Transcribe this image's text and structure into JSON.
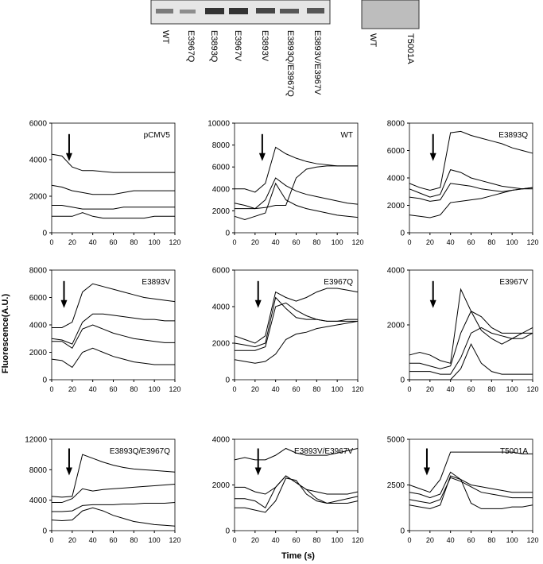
{
  "blot": {
    "lanes_left": [
      "WT",
      "E3967Q",
      "E3893Q",
      "E3967V",
      "E3893V",
      "E3893Q/E3967Q",
      "E3893V/E3967V"
    ],
    "lanes_right": [
      "WT",
      "T5001A"
    ]
  },
  "figure": {
    "ylabel": "Fluorescence(A.U.)",
    "xlabel": "Time (s)"
  },
  "chart_data": [
    {
      "type": "line",
      "title": "pCMV5",
      "arrow_x": 17,
      "x": [
        0,
        10,
        20,
        30,
        40,
        50,
        60,
        70,
        80,
        90,
        100,
        110,
        120
      ],
      "xlim": [
        0,
        120
      ],
      "xticks": [
        0,
        20,
        40,
        60,
        80,
        100,
        120
      ],
      "ylim": [
        0,
        6000
      ],
      "yticks": [
        0,
        2000,
        4000,
        6000
      ],
      "series": [
        {
          "color": "#000000",
          "values": [
            4300,
            4200,
            3600,
            3400,
            3400,
            3350,
            3300,
            3300,
            3300,
            3300,
            3300,
            3300,
            3300
          ]
        },
        {
          "color": "#000000",
          "values": [
            2600,
            2500,
            2300,
            2200,
            2100,
            2100,
            2100,
            2200,
            2300,
            2300,
            2300,
            2300,
            2300
          ]
        },
        {
          "color": "#000000",
          "values": [
            1500,
            1500,
            1400,
            1300,
            1300,
            1300,
            1300,
            1400,
            1400,
            1400,
            1400,
            1400,
            1400
          ]
        },
        {
          "color": "#000000",
          "values": [
            900,
            900,
            900,
            1100,
            900,
            800,
            800,
            800,
            800,
            800,
            900,
            900,
            900
          ]
        }
      ]
    },
    {
      "type": "line",
      "title": "WT",
      "arrow_x": 27,
      "x": [
        0,
        10,
        20,
        30,
        40,
        50,
        60,
        70,
        80,
        90,
        100,
        110,
        120
      ],
      "xlim": [
        0,
        120
      ],
      "xticks": [
        0,
        20,
        40,
        60,
        80,
        100,
        120
      ],
      "ylim": [
        0,
        10000
      ],
      "yticks": [
        0,
        2000,
        4000,
        6000,
        8000,
        10000
      ],
      "series": [
        {
          "color": "#000000",
          "values": [
            4000,
            4000,
            3700,
            4500,
            7800,
            7200,
            6800,
            6500,
            6300,
            6200,
            6100,
            6100,
            6100
          ]
        },
        {
          "color": "#000000",
          "values": [
            2700,
            2500,
            2200,
            3000,
            5000,
            4300,
            3800,
            3500,
            3300,
            3100,
            2900,
            2700,
            2600
          ]
        },
        {
          "color": "#000000",
          "values": [
            2200,
            2200,
            2200,
            2300,
            2500,
            2500,
            5000,
            5800,
            6000,
            6100,
            6100,
            6100,
            6100
          ]
        },
        {
          "color": "#000000",
          "values": [
            1500,
            1200,
            1500,
            1800,
            4500,
            3000,
            2500,
            2200,
            2000,
            1800,
            1600,
            1500,
            1400
          ]
        }
      ]
    },
    {
      "type": "line",
      "title": "E3893Q",
      "arrow_x": 23,
      "x": [
        0,
        10,
        20,
        30,
        40,
        50,
        60,
        70,
        80,
        90,
        100,
        110,
        120
      ],
      "xlim": [
        0,
        120
      ],
      "xticks": [
        0,
        20,
        40,
        60,
        80,
        100,
        120
      ],
      "ylim": [
        0,
        8000
      ],
      "yticks": [
        0,
        2000,
        4000,
        6000,
        8000
      ],
      "series": [
        {
          "color": "#000000",
          "values": [
            3600,
            3300,
            3100,
            3300,
            7300,
            7400,
            7100,
            6900,
            6700,
            6500,
            6200,
            6000,
            5800
          ]
        },
        {
          "color": "#000000",
          "values": [
            3200,
            2900,
            2600,
            2800,
            4600,
            4400,
            4000,
            3800,
            3600,
            3400,
            3300,
            3200,
            3200
          ]
        },
        {
          "color": "#000000",
          "values": [
            2600,
            2500,
            2300,
            2400,
            3600,
            3500,
            3400,
            3200,
            3100,
            3000,
            3100,
            3200,
            3300
          ]
        },
        {
          "color": "#000000",
          "values": [
            1300,
            1200,
            1100,
            1300,
            2200,
            2300,
            2400,
            2500,
            2700,
            2900,
            3100,
            3200,
            3300
          ]
        }
      ]
    },
    {
      "type": "line",
      "title": "E3893V",
      "arrow_x": 12,
      "x": [
        0,
        10,
        20,
        30,
        40,
        50,
        60,
        70,
        80,
        90,
        100,
        110,
        120
      ],
      "xlim": [
        0,
        120
      ],
      "xticks": [
        0,
        20,
        40,
        60,
        80,
        100,
        120
      ],
      "ylim": [
        0,
        8000
      ],
      "yticks": [
        0,
        2000,
        4000,
        6000,
        8000
      ],
      "series": [
        {
          "color": "#000000",
          "values": [
            3800,
            3800,
            4200,
            6400,
            7000,
            6800,
            6600,
            6400,
            6200,
            6000,
            5900,
            5800,
            5700
          ]
        },
        {
          "color": "#000000",
          "values": [
            3000,
            2900,
            2600,
            4200,
            4800,
            4800,
            4700,
            4600,
            4500,
            4400,
            4400,
            4300,
            4300
          ]
        },
        {
          "color": "#000000",
          "values": [
            2800,
            2800,
            2300,
            3700,
            4000,
            3700,
            3400,
            3200,
            3000,
            2900,
            2800,
            2700,
            2700
          ]
        },
        {
          "color": "#000000",
          "values": [
            1500,
            1400,
            900,
            2000,
            2300,
            2000,
            1700,
            1500,
            1300,
            1200,
            1100,
            1100,
            1100
          ]
        }
      ]
    },
    {
      "type": "line",
      "title": "E3967Q",
      "arrow_x": 23,
      "x": [
        0,
        10,
        20,
        30,
        40,
        50,
        60,
        70,
        80,
        90,
        100,
        110,
        120
      ],
      "xlim": [
        0,
        120
      ],
      "xticks": [
        0,
        20,
        40,
        60,
        80,
        100,
        120
      ],
      "ylim": [
        0,
        6000
      ],
      "yticks": [
        0,
        2000,
        4000,
        6000
      ],
      "series": [
        {
          "color": "#000000",
          "values": [
            2400,
            2200,
            2000,
            2400,
            4800,
            4500,
            4300,
            4500,
            4800,
            5000,
            5000,
            4900,
            4800
          ]
        },
        {
          "color": "#000000",
          "values": [
            2000,
            1900,
            1800,
            2000,
            4500,
            3900,
            3400,
            3300,
            3300,
            3200,
            3200,
            3300,
            3300
          ]
        },
        {
          "color": "#000000",
          "values": [
            1600,
            1600,
            1600,
            1800,
            4000,
            4200,
            3800,
            3500,
            3300,
            3200,
            3200,
            3200,
            3200
          ]
        },
        {
          "color": "#000000",
          "values": [
            1100,
            1000,
            900,
            1000,
            1400,
            2200,
            2500,
            2600,
            2800,
            2900,
            3000,
            3100,
            3200
          ]
        }
      ]
    },
    {
      "type": "line",
      "title": "E3967V",
      "arrow_x": 23,
      "x": [
        0,
        10,
        20,
        30,
        40,
        50,
        60,
        70,
        80,
        90,
        100,
        110,
        120
      ],
      "xlim": [
        0,
        120
      ],
      "xticks": [
        0,
        20,
        40,
        60,
        80,
        100,
        120
      ],
      "ylim": [
        0,
        4000
      ],
      "yticks": [
        0,
        2000,
        4000
      ],
      "series": [
        {
          "color": "#000000",
          "values": [
            900,
            1000,
            900,
            700,
            600,
            3300,
            2500,
            1800,
            1500,
            1300,
            1500,
            1700,
            1900
          ]
        },
        {
          "color": "#000000",
          "values": [
            600,
            600,
            500,
            400,
            500,
            1700,
            2500,
            2300,
            1900,
            1700,
            1700,
            1700,
            1700
          ]
        },
        {
          "color": "#000000",
          "values": [
            300,
            300,
            300,
            200,
            200,
            800,
            1700,
            1900,
            1700,
            1600,
            1500,
            1500,
            1700
          ]
        },
        {
          "color": "#000000",
          "values": [
            0,
            0,
            0,
            0,
            0,
            400,
            1300,
            600,
            300,
            200,
            200,
            200,
            200
          ]
        }
      ]
    },
    {
      "type": "line",
      "title": "E3893Q/E3967Q",
      "arrow_x": 17,
      "x": [
        0,
        10,
        20,
        30,
        40,
        50,
        60,
        70,
        80,
        90,
        100,
        110,
        120
      ],
      "xlim": [
        0,
        120
      ],
      "xticks": [
        0,
        20,
        40,
        60,
        80,
        100,
        120
      ],
      "ylim": [
        0,
        12000
      ],
      "yticks": [
        0,
        4000,
        8000,
        12000
      ],
      "series": [
        {
          "color": "#000000",
          "values": [
            4500,
            4400,
            4500,
            10000,
            9500,
            9000,
            8600,
            8300,
            8100,
            8000,
            7900,
            7800,
            7700
          ]
        },
        {
          "color": "#000000",
          "values": [
            3700,
            3700,
            4200,
            5500,
            5200,
            5400,
            5500,
            5600,
            5700,
            5800,
            5900,
            6000,
            6100
          ]
        },
        {
          "color": "#000000",
          "values": [
            2500,
            2500,
            2600,
            3300,
            3400,
            3400,
            3400,
            3500,
            3500,
            3600,
            3600,
            3600,
            3700
          ]
        },
        {
          "color": "#000000",
          "values": [
            1400,
            1300,
            1400,
            2600,
            3000,
            2600,
            2000,
            1600,
            1200,
            1000,
            800,
            700,
            600
          ]
        }
      ]
    },
    {
      "type": "line",
      "title": "E3893V/E3967V",
      "arrow_x": 23,
      "x": [
        0,
        10,
        20,
        30,
        40,
        50,
        60,
        70,
        80,
        90,
        100,
        110,
        120
      ],
      "xlim": [
        0,
        120
      ],
      "xticks": [
        0,
        20,
        40,
        60,
        80,
        100,
        120
      ],
      "ylim": [
        0,
        4000
      ],
      "yticks": [
        0,
        2000,
        4000
      ],
      "series": [
        {
          "color": "#000000",
          "values": [
            3100,
            3200,
            3100,
            3100,
            3300,
            3600,
            3400,
            3300,
            3300,
            3300,
            3400,
            3500,
            3600
          ]
        },
        {
          "color": "#000000",
          "values": [
            1900,
            1900,
            1700,
            1600,
            1900,
            2400,
            2100,
            1800,
            1700,
            1600,
            1600,
            1600,
            1700
          ]
        },
        {
          "color": "#000000",
          "values": [
            1400,
            1400,
            1300,
            1000,
            1900,
            2400,
            2100,
            1800,
            1400,
            1200,
            1200,
            1200,
            1300
          ]
        },
        {
          "color": "#000000",
          "values": [
            1000,
            1000,
            900,
            800,
            1300,
            2300,
            2200,
            1600,
            1300,
            1200,
            1300,
            1400,
            1500
          ]
        }
      ]
    },
    {
      "type": "line",
      "title": "T5001A",
      "arrow_x": 17,
      "x": [
        0,
        10,
        20,
        30,
        40,
        50,
        60,
        70,
        80,
        90,
        100,
        110,
        120
      ],
      "xlim": [
        0,
        120
      ],
      "xticks": [
        0,
        20,
        40,
        60,
        80,
        100,
        120
      ],
      "ylim": [
        0,
        5000
      ],
      "yticks": [
        0,
        2500,
        5000
      ],
      "series": [
        {
          "color": "#000000",
          "values": [
            2500,
            2300,
            2100,
            2800,
            4300,
            4300,
            4300,
            4300,
            4300,
            4300,
            4300,
            4200,
            4200
          ]
        },
        {
          "color": "#000000",
          "values": [
            2100,
            2000,
            1800,
            2000,
            3200,
            2800,
            2500,
            2400,
            2300,
            2200,
            2100,
            2100,
            2100
          ]
        },
        {
          "color": "#000000",
          "values": [
            1700,
            1600,
            1500,
            1700,
            2900,
            2700,
            2400,
            2100,
            2000,
            1900,
            1800,
            1800,
            1800
          ]
        },
        {
          "color": "#000000",
          "values": [
            1400,
            1300,
            1200,
            1400,
            3000,
            2800,
            1500,
            1200,
            1200,
            1200,
            1300,
            1300,
            1400
          ]
        }
      ]
    }
  ]
}
